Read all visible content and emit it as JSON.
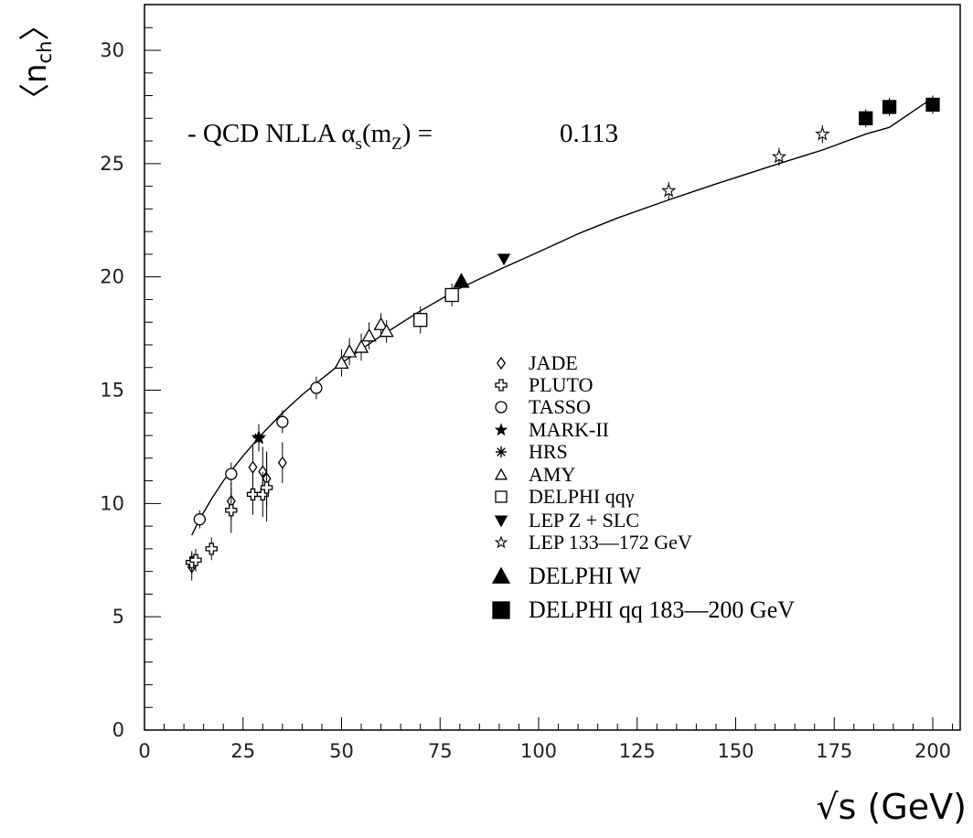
{
  "chart_data": {
    "type": "scatter",
    "xlabel": "√s (GeV)",
    "ylabel": "〈n",
    "ylabel_sub": "ch",
    "ylabel_close": "〉",
    "xlim": [
      0,
      205
    ],
    "ylim": [
      0,
      30
    ],
    "x_ticks": [
      0,
      25,
      50,
      75,
      100,
      125,
      150,
      175,
      200
    ],
    "y_ticks": [
      0,
      5,
      10,
      15,
      20,
      25,
      30
    ],
    "grid": false,
    "legend_position": "center-right",
    "annotation": {
      "prefix": "- QCD NLLA α",
      "sub": "s",
      "mid": "(m",
      "sub2": "Z",
      "suffix": ") =",
      "value": "0.113"
    },
    "fit_curve": {
      "name": "QCD NLLA",
      "x": [
        12,
        14,
        17,
        20,
        25,
        30,
        35,
        40,
        45,
        50,
        55,
        60,
        70,
        80,
        91,
        100,
        110,
        120,
        133,
        145,
        161,
        172,
        183,
        189,
        200
      ],
      "y": [
        8.6,
        9.3,
        10.2,
        11.0,
        12.1,
        13.1,
        14.0,
        14.8,
        15.5,
        16.2,
        16.8,
        17.4,
        18.5,
        19.5,
        20.4,
        21.1,
        21.9,
        22.6,
        23.4,
        24.1,
        25.0,
        25.6,
        26.3,
        26.6,
        27.9
      ]
    },
    "series": [
      {
        "name": "JADE",
        "marker": "diamond-open",
        "x": [
          12,
          22,
          27.5,
          30,
          31,
          35
        ],
        "y": [
          7.2,
          10.1,
          11.6,
          11.4,
          11.1,
          11.8
        ],
        "err": [
          0.6,
          0.8,
          1.0,
          1.1,
          1.2,
          0.9
        ]
      },
      {
        "name": "PLUTO",
        "marker": "cross-open",
        "x": [
          12,
          13,
          17,
          22,
          27.5,
          30,
          31
        ],
        "y": [
          7.4,
          7.5,
          8.0,
          9.7,
          10.4,
          10.4,
          10.7
        ],
        "err": [
          0.5,
          0.5,
          0.5,
          1.0,
          0.9,
          1.0,
          1.5
        ]
      },
      {
        "name": "TASSO",
        "marker": "circle-open",
        "x": [
          14,
          22,
          35,
          43.6
        ],
        "y": [
          9.3,
          11.3,
          13.6,
          15.1
        ],
        "err": [
          0.4,
          0.5,
          0.5,
          0.5
        ]
      },
      {
        "name": "MARK-II",
        "marker": "star-filled",
        "x": [
          29
        ],
        "y": [
          12.9
        ],
        "err": [
          0.6
        ]
      },
      {
        "name": "HRS",
        "marker": "asterisk",
        "x": [
          29
        ],
        "y": [
          12.9
        ],
        "err": [
          0.5
        ]
      },
      {
        "name": "AMY",
        "marker": "triangle-open",
        "x": [
          50,
          52,
          55,
          57,
          60,
          61.4
        ],
        "y": [
          16.2,
          16.7,
          16.9,
          17.4,
          17.9,
          17.6
        ],
        "err": [
          0.6,
          0.6,
          0.6,
          0.6,
          0.5,
          0.5
        ]
      },
      {
        "name": "DELPHI qqγ",
        "marker": "square-open",
        "x": [
          70,
          78
        ],
        "y": [
          18.1,
          19.2
        ],
        "err": [
          0.6,
          0.5
        ]
      },
      {
        "name": "LEP Z + SLC",
        "marker": "triangle-down-filled",
        "x": [
          91.2
        ],
        "y": [
          20.8
        ],
        "err": [
          0.15
        ]
      },
      {
        "name": "LEP 133—172 GeV",
        "marker": "star-open",
        "x": [
          133,
          161,
          172
        ],
        "y": [
          23.8,
          25.3,
          26.3
        ],
        "err": [
          0.4,
          0.4,
          0.4
        ]
      },
      {
        "name": "DELPHI W",
        "marker": "triangle-filled",
        "x": [
          80.4
        ],
        "y": [
          19.8
        ],
        "err": [
          0.2
        ]
      },
      {
        "name": "DELPHI qq 183—200 GeV",
        "marker": "square-filled",
        "x": [
          183,
          189,
          200
        ],
        "y": [
          27.0,
          27.5,
          27.6
        ],
        "err": [
          0.4,
          0.4,
          0.4
        ]
      }
    ]
  }
}
